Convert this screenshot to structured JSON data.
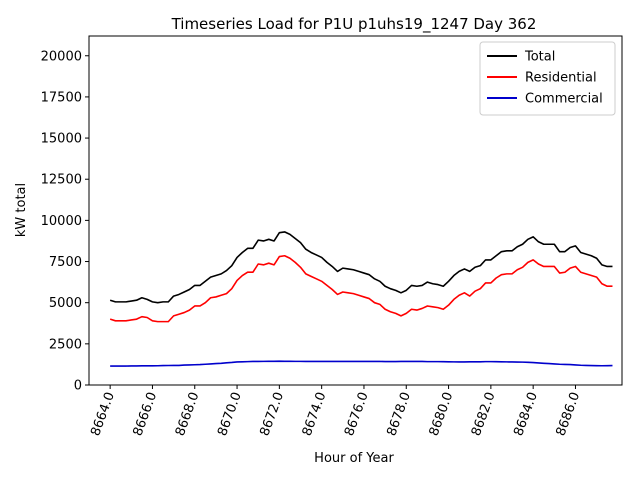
{
  "chart_data": {
    "type": "line",
    "title": "Timeseries Load for P1U p1uhs19_1247  Day 362",
    "xlabel": "Hour of Year",
    "ylabel": "kW total",
    "xlim": [
      8663,
      8688.2
    ],
    "ylim": [
      0,
      21200
    ],
    "xticks": [
      8664,
      8666,
      8668,
      8670,
      8672,
      8674,
      8676,
      8678,
      8680,
      8682,
      8684,
      8686
    ],
    "xtick_labels": [
      "8664.0",
      "8666.0",
      "8668.0",
      "8670.0",
      "8672.0",
      "8674.0",
      "8676.0",
      "8678.0",
      "8680.0",
      "8682.0",
      "8684.0",
      "8686.0"
    ],
    "yticks": [
      0,
      2500,
      5000,
      7500,
      10000,
      12500,
      15000,
      17500,
      20000
    ],
    "ytick_labels": [
      "0",
      "2500",
      "5000",
      "7500",
      "10000",
      "12500",
      "15000",
      "17500",
      "20000"
    ],
    "legend_position": "top-right",
    "grid": false,
    "x": [
      8664.0,
      8664.25,
      8664.5,
      8664.75,
      8665.0,
      8665.25,
      8665.5,
      8665.75,
      8666.0,
      8666.25,
      8666.5,
      8666.75,
      8667.0,
      8667.25,
      8667.5,
      8667.75,
      8668.0,
      8668.25,
      8668.5,
      8668.75,
      8669.0,
      8669.25,
      8669.5,
      8669.75,
      8670.0,
      8670.25,
      8670.5,
      8670.75,
      8671.0,
      8671.25,
      8671.5,
      8671.75,
      8672.0,
      8672.25,
      8672.5,
      8672.75,
      8673.0,
      8673.25,
      8673.5,
      8673.75,
      8674.0,
      8674.25,
      8674.5,
      8674.75,
      8675.0,
      8675.25,
      8675.5,
      8675.75,
      8676.0,
      8676.25,
      8676.5,
      8676.75,
      8677.0,
      8677.25,
      8677.5,
      8677.75,
      8678.0,
      8678.25,
      8678.5,
      8678.75,
      8679.0,
      8679.25,
      8679.5,
      8679.75,
      8680.0,
      8680.25,
      8680.5,
      8680.75,
      8681.0,
      8681.25,
      8681.5,
      8681.75,
      8682.0,
      8682.25,
      8682.5,
      8682.75,
      8683.0,
      8683.25,
      8683.5,
      8683.75,
      8684.0,
      8684.25,
      8684.5,
      8684.75,
      8685.0,
      8685.25,
      8685.5,
      8685.75,
      8686.0,
      8686.25,
      8686.5,
      8686.75,
      8687.0,
      8687.25,
      8687.5,
      8687.75
    ],
    "series": [
      {
        "name": "Total",
        "color": "#000000",
        "values": [
          5150,
          5050,
          5050,
          5050,
          5100,
          5150,
          5300,
          5200,
          5050,
          5000,
          5050,
          5050,
          5400,
          5500,
          5650,
          5800,
          6050,
          6050,
          6300,
          6550,
          6650,
          6750,
          6950,
          7250,
          7750,
          8050,
          8300,
          8300,
          8800,
          8750,
          8850,
          8750,
          9250,
          9300,
          9150,
          8900,
          8650,
          8250,
          8050,
          7900,
          7750,
          7450,
          7200,
          6900,
          7100,
          7050,
          7000,
          6900,
          6800,
          6700,
          6450,
          6300,
          6000,
          5850,
          5750,
          5600,
          5750,
          6050,
          6000,
          6050,
          6250,
          6150,
          6100,
          6000,
          6300,
          6650,
          6900,
          7050,
          6900,
          7150,
          7250,
          7600,
          7600,
          7850,
          8100,
          8150,
          8150,
          8400,
          8550,
          8850,
          9000,
          8700,
          8550,
          8550,
          8550,
          8100,
          8100,
          8350,
          8450,
          8050,
          7950,
          7850,
          7700,
          7300,
          7200,
          7200
        ]
      },
      {
        "name": "Residential",
        "color": "#ff0000",
        "values": [
          4000,
          3900,
          3900,
          3900,
          3950,
          4000,
          4150,
          4100,
          3900,
          3850,
          3850,
          3850,
          4200,
          4300,
          4400,
          4550,
          4800,
          4800,
          5000,
          5300,
          5350,
          5450,
          5550,
          5850,
          6350,
          6650,
          6850,
          6850,
          7350,
          7300,
          7400,
          7300,
          7800,
          7850,
          7700,
          7450,
          7150,
          6750,
          6600,
          6450,
          6300,
          6050,
          5800,
          5500,
          5650,
          5600,
          5550,
          5450,
          5350,
          5250,
          5000,
          4900,
          4600,
          4450,
          4350,
          4200,
          4350,
          4600,
          4550,
          4650,
          4800,
          4750,
          4700,
          4600,
          4850,
          5200,
          5450,
          5600,
          5400,
          5700,
          5850,
          6200,
          6200,
          6500,
          6700,
          6750,
          6750,
          7000,
          7150,
          7450,
          7600,
          7350,
          7200,
          7200,
          7200,
          6800,
          6850,
          7100,
          7200,
          6850,
          6750,
          6650,
          6550,
          6150,
          6000,
          6000
        ]
      },
      {
        "name": "Commercial",
        "color": "#0000cc",
        "values": [
          1150,
          1150,
          1150,
          1150,
          1160,
          1160,
          1165,
          1165,
          1165,
          1170,
          1180,
          1185,
          1190,
          1190,
          1210,
          1220,
          1230,
          1240,
          1260,
          1280,
          1300,
          1320,
          1350,
          1370,
          1400,
          1410,
          1420,
          1430,
          1430,
          1435,
          1440,
          1440,
          1445,
          1440,
          1440,
          1435,
          1435,
          1430,
          1430,
          1430,
          1430,
          1430,
          1430,
          1430,
          1430,
          1430,
          1430,
          1430,
          1430,
          1430,
          1430,
          1430,
          1425,
          1425,
          1425,
          1430,
          1430,
          1430,
          1430,
          1430,
          1420,
          1420,
          1420,
          1415,
          1410,
          1405,
          1400,
          1400,
          1410,
          1410,
          1410,
          1420,
          1420,
          1415,
          1410,
          1405,
          1400,
          1395,
          1390,
          1380,
          1360,
          1340,
          1320,
          1300,
          1280,
          1260,
          1250,
          1240,
          1220,
          1200,
          1190,
          1180,
          1175,
          1170,
          1175,
          1180
        ]
      }
    ]
  }
}
